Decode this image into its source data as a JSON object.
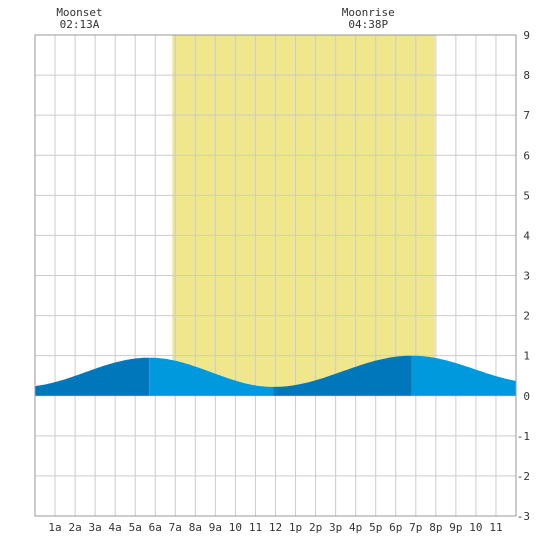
{
  "moon_events": [
    {
      "label": "Moonset",
      "time": "02:13A",
      "hour": 2.22
    },
    {
      "label": "Moonrise",
      "time": "04:38P",
      "hour": 16.63
    }
  ],
  "colors": {
    "daylight": "#f0e68c",
    "tide_rising": "#0099dd",
    "tide_falling": "#0077bb",
    "grid": "#cccccc",
    "frame": "#999999",
    "text": "#333333"
  },
  "chart_data": {
    "type": "area",
    "title": "",
    "xlabel": "",
    "ylabel": "",
    "xlim": [
      0,
      24
    ],
    "ylim": [
      -3,
      9
    ],
    "grid": true,
    "x_tick_labels": [
      "1a",
      "2a",
      "3a",
      "4a",
      "5a",
      "6a",
      "7a",
      "8a",
      "9a",
      "10",
      "11",
      "12",
      "1p",
      "2p",
      "3p",
      "4p",
      "5p",
      "6p",
      "7p",
      "8p",
      "9p",
      "10",
      "11"
    ],
    "y_ticks": [
      -3,
      -2,
      -1,
      0,
      1,
      2,
      3,
      4,
      5,
      6,
      7,
      8,
      9
    ],
    "daylight": {
      "start_hour": 6.85,
      "end_hour": 19.95
    },
    "tide_extremes": [
      {
        "hour": 5.7,
        "height": 0.95,
        "type": "high"
      },
      {
        "hour": 11.9,
        "height": 0.22,
        "type": "low"
      },
      {
        "hour": 18.8,
        "height": 1.0,
        "type": "high"
      }
    ],
    "x": [
      0,
      1,
      2,
      3,
      4,
      5,
      6,
      7,
      8,
      9,
      10,
      11,
      12,
      13,
      14,
      15,
      16,
      17,
      18,
      19,
      20,
      21,
      22,
      23,
      24
    ],
    "height": [
      0.42,
      0.48,
      0.58,
      0.7,
      0.82,
      0.92,
      0.94,
      0.86,
      0.68,
      0.48,
      0.32,
      0.23,
      0.22,
      0.28,
      0.42,
      0.62,
      0.82,
      0.95,
      1.0,
      0.98,
      0.86,
      0.7,
      0.56,
      0.46,
      0.4
    ]
  }
}
